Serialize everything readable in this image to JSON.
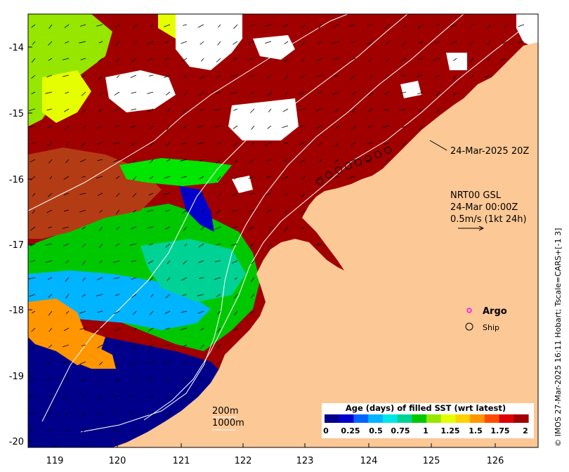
{
  "colors": {
    "land": "#fcc896",
    "latest": "#a00000",
    "cloud": "#ffffff",
    "cb": [
      "#00008b",
      "#0000cd",
      "#0064ff",
      "#00b4ff",
      "#00e6e6",
      "#00d296",
      "#00c800",
      "#96e600",
      "#e6ff00",
      "#ffd200",
      "#ff9600",
      "#ff4b00",
      "#dc0000",
      "#a00000"
    ]
  },
  "axes": {
    "lat_ticks": [
      "-14",
      "-15",
      "-16",
      "-17",
      "-18",
      "-19",
      "-20"
    ],
    "lon_ticks": [
      "119",
      "120",
      "121",
      "122",
      "123",
      "124",
      "125",
      "126"
    ]
  },
  "annotations": {
    "ship_time": "24-Mar-2025 20Z",
    "product": "NRT00 GSL",
    "product_time": "24-Mar 00:00Z",
    "vector_scale": "0.5m/s (1kt 24h)",
    "isobath_200": "200m",
    "isobath_1000": "1000m"
  },
  "legend": {
    "argo": "Argo",
    "ship": "Ship"
  },
  "colorbar": {
    "title": "Age (days) of filled SST (wrt latest)",
    "ticks": [
      "0",
      "0.25",
      "0.5",
      "0.75",
      "1",
      "1.25",
      "1.5",
      "1.75",
      "2"
    ]
  },
  "credit": "© IMOS 27-Mar-2025 16:11 Hobart; Tscale=CARS+[-1 3]"
}
